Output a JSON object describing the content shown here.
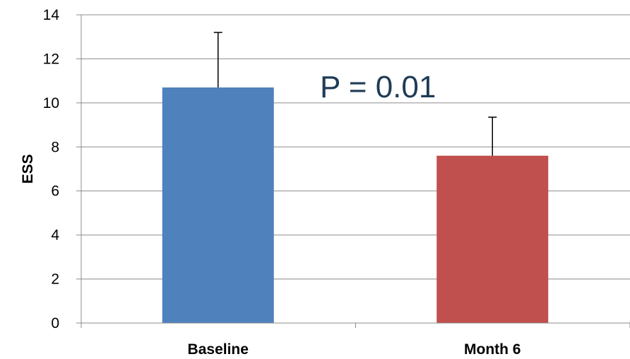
{
  "chart_data": {
    "type": "bar",
    "categories": [
      "Baseline",
      "Month 6"
    ],
    "values": [
      10.7,
      7.6
    ],
    "error_upper": [
      13.2,
      9.35
    ],
    "ylabel": "ESS",
    "xlabel": "",
    "ylim": [
      0,
      14
    ],
    "yticks": [
      0,
      2,
      4,
      6,
      8,
      10,
      12,
      14
    ],
    "grid": true,
    "bar_colors": [
      "#4f81bd",
      "#c0504d"
    ],
    "annotation": "P = 0.01"
  }
}
